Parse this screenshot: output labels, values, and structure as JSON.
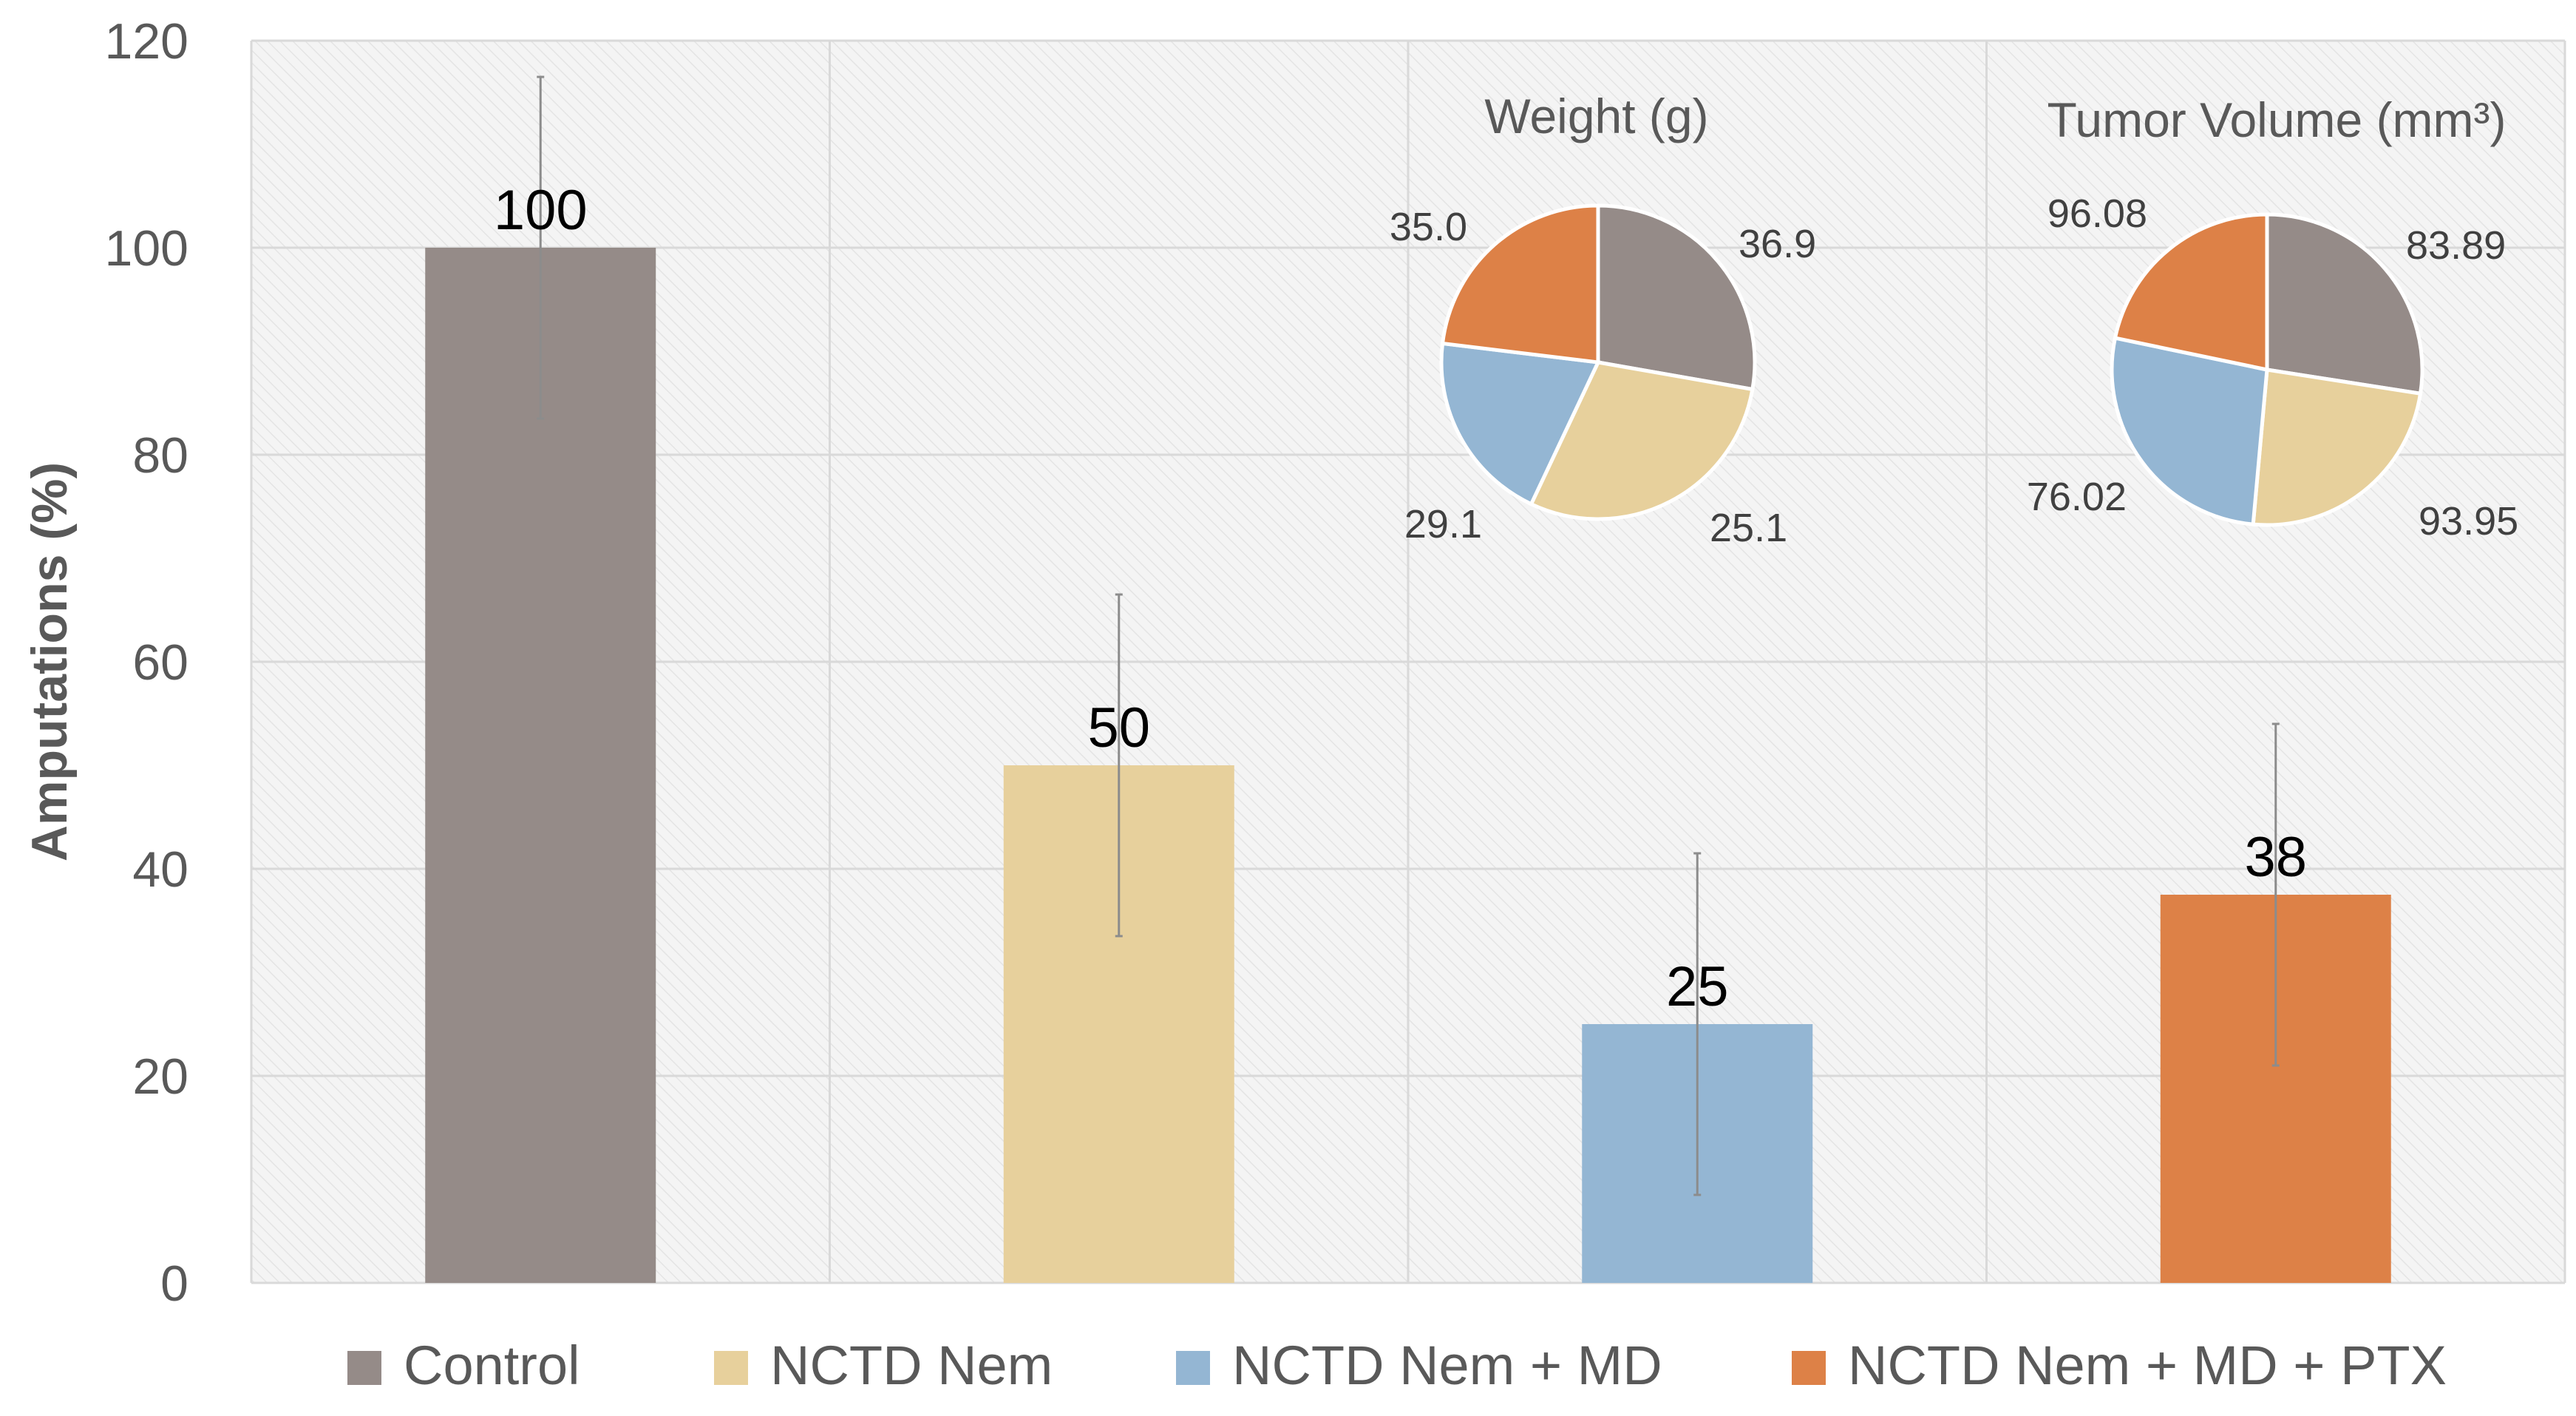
{
  "chart_data": [
    {
      "type": "bar",
      "ylabel": "Amputations (%)",
      "ylim": [
        0,
        120
      ],
      "yticks": [
        0,
        20,
        40,
        60,
        80,
        100,
        120
      ],
      "grid": true,
      "legend_position": "bottom",
      "categories": [
        "Control",
        "NCTD Nem",
        "NCTD Nem + MD",
        "NCTD Nem + MD + PTX"
      ],
      "values": [
        100,
        50,
        25,
        37.5
      ],
      "value_labels": [
        "100",
        "50",
        "25",
        "38"
      ],
      "error_low": [
        83.5,
        33.5,
        8.5,
        21
      ],
      "error_high": [
        116.5,
        66.5,
        41.5,
        54
      ],
      "colors": [
        "#958b88",
        "#e7d09c",
        "#94b6d3",
        "#dd8147"
      ]
    },
    {
      "type": "pie",
      "title": "Weight (g)",
      "categories": [
        "Control",
        "NCTD Nem",
        "NCTD Nem + MD",
        "NCTD Nem + MD + PTX"
      ],
      "values": [
        35.0,
        36.9,
        25.1,
        29.1
      ],
      "value_labels": [
        "35.0",
        "36.9",
        "25.1",
        "29.1"
      ],
      "colors": [
        "#958b88",
        "#e7d09c",
        "#94b6d3",
        "#dd8147"
      ]
    },
    {
      "type": "pie",
      "title": "Tumor Volume  (mm³)",
      "categories": [
        "Control",
        "NCTD Nem",
        "NCTD Nem + MD",
        "NCTD Nem + MD + PTX"
      ],
      "values": [
        96.08,
        83.89,
        93.95,
        76.02
      ],
      "value_labels": [
        "96.08",
        "83.89",
        "93.95",
        "76.02"
      ],
      "colors": [
        "#958b88",
        "#e7d09c",
        "#94b6d3",
        "#dd8147"
      ]
    }
  ]
}
